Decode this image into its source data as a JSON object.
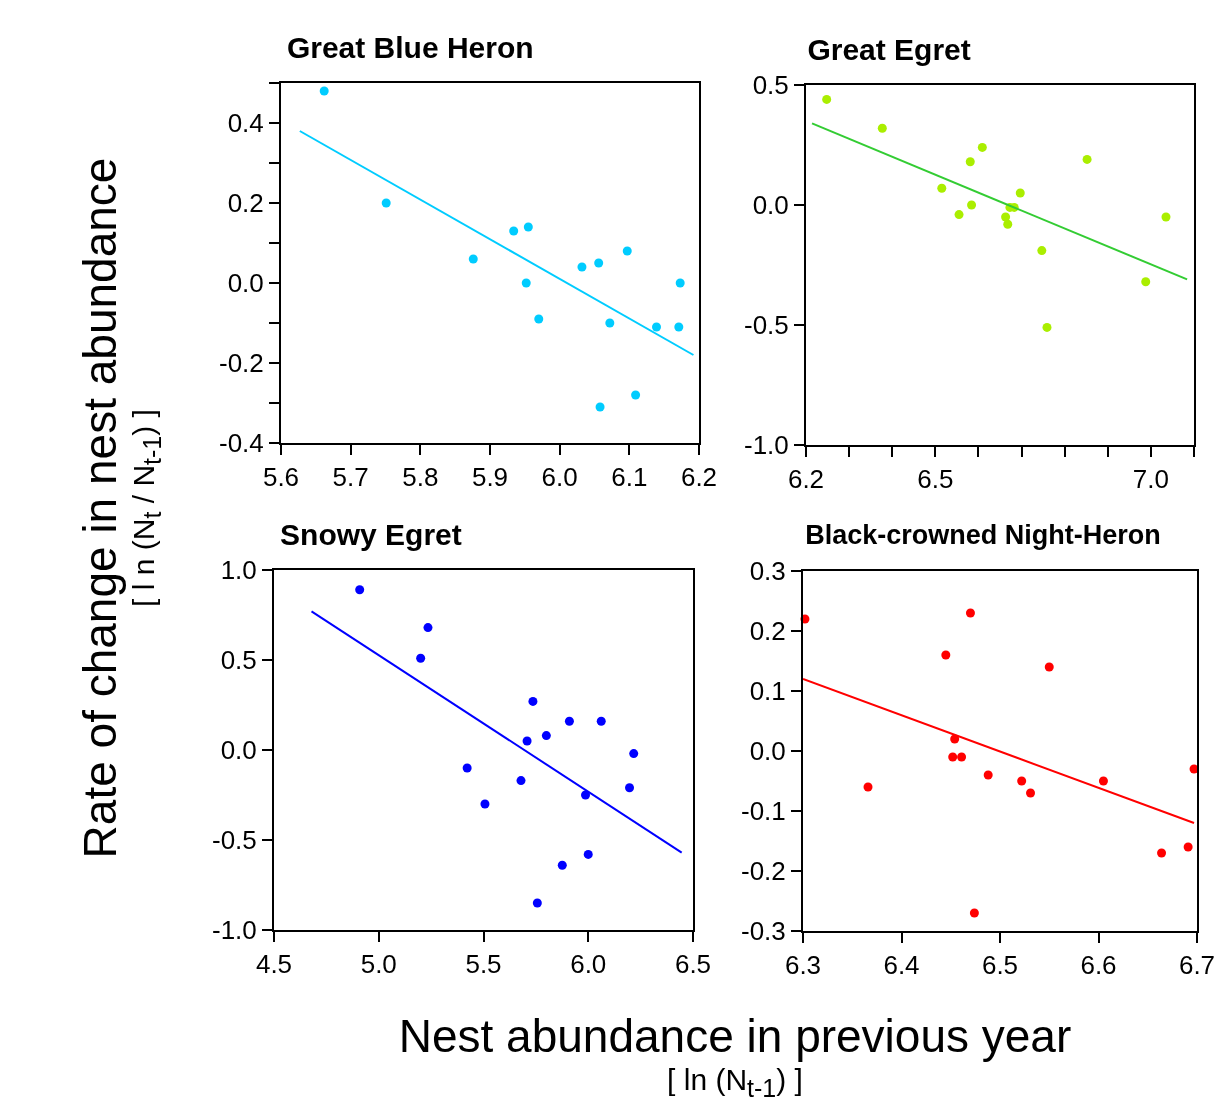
{
  "chart_data": [
    {
      "type": "scatter",
      "title": "Great Blue Heron",
      "ylabel": "Rate of change in nest abundance\n[ l n (N$_{t}$ / N$_{t-1}$) ]",
      "marker": "circle",
      "grid": false,
      "xlim": [
        5.6,
        6.2
      ],
      "xticks": [
        5.6,
        5.7,
        5.8,
        5.9,
        {
          "value": 6,
          "label": "6.0"
        },
        6.1,
        6.2
      ],
      "ylim": [
        -0.4,
        0.5
      ],
      "yticks": [
        -0.4,
        {
          "value": -0.3,
          "label": null
        },
        -0.2,
        {
          "value": -0.1,
          "label": null
        },
        {
          "value": 0,
          "label": "0.0"
        },
        {
          "value": 0.1,
          "label": null
        },
        0.2,
        {
          "value": 0.3,
          "label": null
        },
        0.4,
        {
          "value": 0.5,
          "label": null
        }
      ],
      "series": [
        {
          "color": "#00ccff",
          "x": [
            5.662,
            5.751,
            5.876,
            5.934,
            5.955,
            5.952,
            5.97,
            6.032,
            6.056,
            6.097,
            6.173,
            6.072,
            6.139,
            6.171,
            6.058,
            6.109
          ],
          "values": [
            0.48,
            0.2,
            0.06,
            0.13,
            0.14,
            0.0,
            -0.09,
            0.04,
            0.05,
            0.08,
            0.0,
            -0.1,
            -0.11,
            -0.11,
            -0.31,
            -0.28
          ]
        },
        {
          "type": "line",
          "marker": "none",
          "color": "#00ccff",
          "x": [
            5.627,
            6.192
          ],
          "values": [
            0.38,
            -0.18
          ]
        }
      ]
    },
    {
      "type": "scatter",
      "title": "Great Egret",
      "marker": "circle",
      "grid": false,
      "xlim": [
        6.2,
        7.1
      ],
      "xticks": [
        6.2,
        {
          "value": 6.3,
          "label": null
        },
        {
          "value": 6.4,
          "label": null
        },
        6.5,
        {
          "value": 6.6,
          "label": null
        },
        {
          "value": 6.7,
          "label": null
        },
        {
          "value": 6.8,
          "label": null
        },
        {
          "value": 6.9,
          "label": null
        },
        {
          "value": 7,
          "label": "7.0"
        },
        {
          "value": 7.1,
          "label": null
        }
      ],
      "ylim": [
        -1,
        0.5
      ],
      "yticks": [
        {
          "value": -1,
          "label": "-1.0"
        },
        -0.5,
        {
          "value": 0,
          "label": "0.0"
        },
        0.5
      ],
      "series": [
        {
          "color": "#aaee00",
          "x": [
            6.248,
            6.377,
            6.609,
            6.581,
            6.515,
            6.584,
            6.555,
            6.697,
            6.673,
            6.683,
            6.663,
            6.668,
            6.852,
            6.747,
            6.759,
            6.988,
            7.035
          ],
          "values": [
            0.44,
            0.32,
            0.24,
            0.18,
            0.07,
            0.0,
            -0.04,
            0.05,
            -0.01,
            -0.01,
            -0.05,
            -0.08,
            0.19,
            -0.19,
            -0.51,
            -0.32,
            -0.05
          ]
        },
        {
          "type": "line",
          "marker": "none",
          "color": "#33cc33",
          "x": [
            6.214,
            7.084
          ],
          "values": [
            0.34,
            -0.31
          ]
        }
      ]
    },
    {
      "type": "scatter",
      "title": "Snowy Egret",
      "xlabel": "Nest abundance in previous year\n[ ln (N$_{t-1}$) ]",
      "marker": "circle",
      "grid": false,
      "xlim": [
        4.5,
        6.5
      ],
      "xticks": [
        4.5,
        {
          "value": 5,
          "label": "5.0"
        },
        5.5,
        {
          "value": 6,
          "label": "6.0"
        },
        6.5
      ],
      "ylim": [
        -1,
        1
      ],
      "yticks": [
        {
          "value": -1,
          "label": "-1.0"
        },
        -0.5,
        {
          "value": 0,
          "label": "0.0"
        },
        0.5,
        {
          "value": 1,
          "label": "1.0"
        }
      ],
      "series": [
        {
          "color": "#0000ff",
          "x": [
            4.909,
            5.235,
            5.2,
            5.736,
            5.91,
            6.062,
            5.708,
            5.8,
            6.217,
            5.422,
            5.679,
            6.197,
            5.987,
            5.507,
            6.0,
            5.876,
            5.757
          ],
          "values": [
            0.89,
            0.68,
            0.51,
            0.27,
            0.16,
            0.16,
            0.05,
            0.08,
            -0.02,
            -0.1,
            -0.17,
            -0.21,
            -0.25,
            -0.3,
            -0.58,
            -0.64,
            -0.85
          ]
        },
        {
          "type": "line",
          "marker": "none",
          "color": "#0000ff",
          "x": [
            4.679,
            6.446
          ],
          "values": [
            0.77,
            -0.57
          ]
        }
      ]
    },
    {
      "type": "scatter",
      "title": "Black-crowned Night-Heron",
      "marker": "circle",
      "grid": false,
      "xlim": [
        6.3,
        6.7
      ],
      "xticks": [
        6.3,
        6.4,
        6.5,
        6.6,
        6.7
      ],
      "ylim": [
        -0.3,
        0.3
      ],
      "yticks": [
        -0.3,
        -0.2,
        -0.1,
        {
          "value": 0,
          "label": "0.0"
        },
        0.1,
        0.2,
        0.3
      ],
      "series": [
        {
          "color": "#ff0000",
          "x": [
            6.302,
            6.47,
            6.445,
            6.55,
            6.454,
            6.452,
            6.461,
            6.366,
            6.488,
            6.522,
            6.531,
            6.605,
            6.697,
            6.664,
            6.691,
            6.474
          ],
          "values": [
            0.22,
            0.23,
            0.16,
            0.14,
            0.02,
            -0.01,
            -0.01,
            -0.06,
            -0.04,
            -0.05,
            -0.07,
            -0.05,
            -0.03,
            -0.17,
            -0.16,
            -0.27
          ]
        },
        {
          "type": "line",
          "marker": "none",
          "color": "#ff0000",
          "x": [
            6.3,
            6.697
          ],
          "values": [
            0.12,
            -0.12
          ]
        }
      ]
    }
  ]
}
